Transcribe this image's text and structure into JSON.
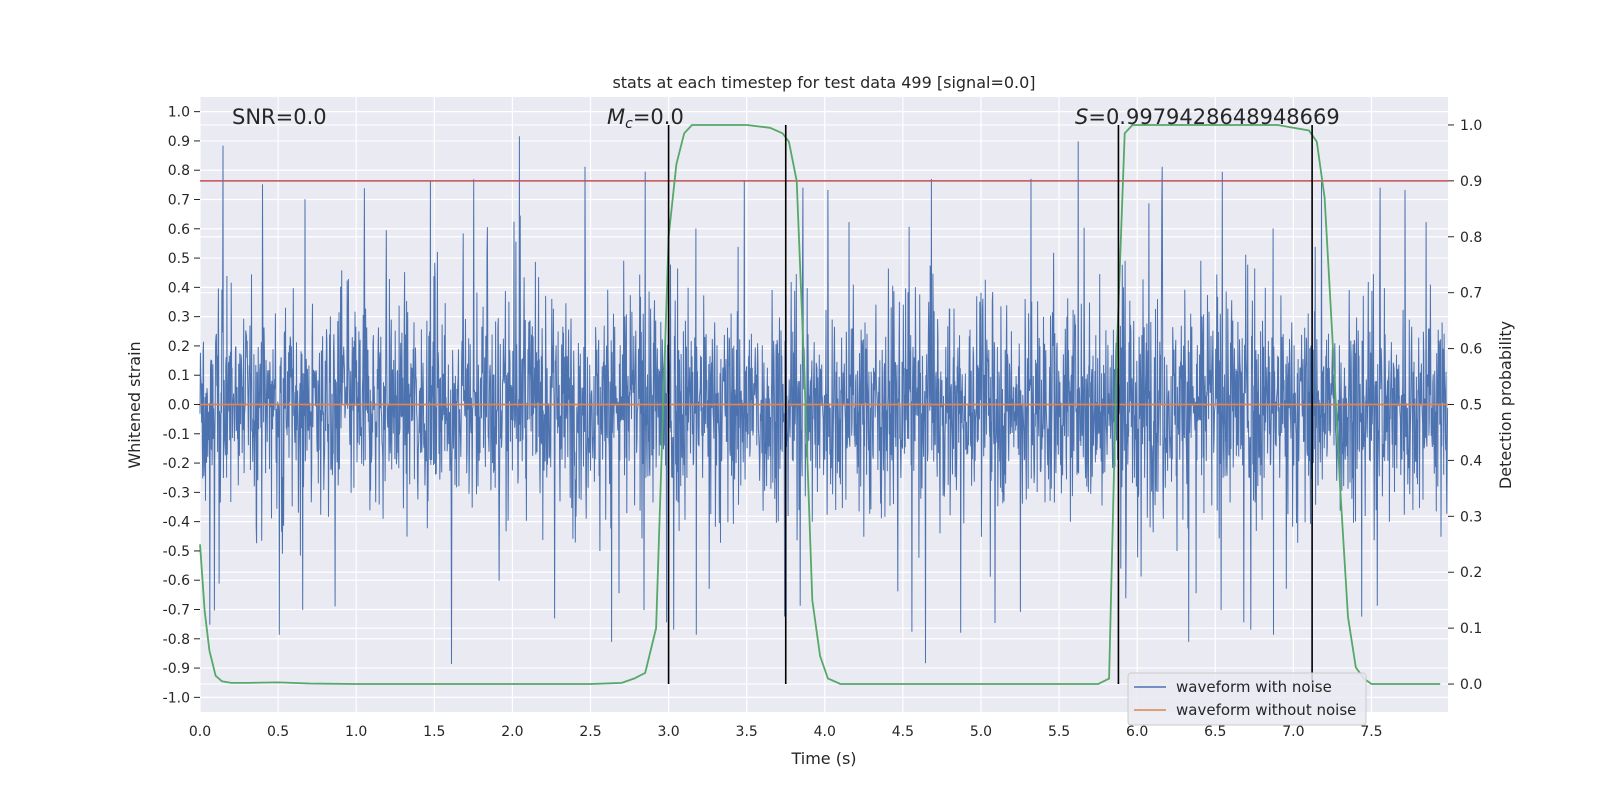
{
  "chart_data": {
    "type": "line",
    "title": "stats at each timestep for test data 499 [signal=0.0]",
    "xlabel": "Time (s)",
    "ylabel": "Whitened strain",
    "y2label": "Detection probability",
    "xlim": [
      0.0,
      7.99
    ],
    "ylim": [
      -1.05,
      1.05
    ],
    "y2lim": [
      -0.05,
      1.05
    ],
    "xticks": [
      "0.0",
      "0.5",
      "1.0",
      "1.5",
      "2.0",
      "2.5",
      "3.0",
      "3.5",
      "4.0",
      "4.5",
      "5.0",
      "5.5",
      "6.0",
      "6.5",
      "7.0",
      "7.5"
    ],
    "yticks": [
      "-1.0",
      "-0.9",
      "-0.8",
      "-0.7",
      "-0.6",
      "-0.5",
      "-0.4",
      "-0.3",
      "-0.2",
      "-0.1",
      "0.0",
      "0.1",
      "0.2",
      "0.3",
      "0.4",
      "0.5",
      "0.6",
      "0.7",
      "0.8",
      "0.9",
      "1.0"
    ],
    "y2ticks": [
      "0.0",
      "0.1",
      "0.2",
      "0.3",
      "0.4",
      "0.5",
      "0.6",
      "0.7",
      "0.8",
      "0.9",
      "1.0"
    ],
    "annotations": {
      "snr": "SNR=0.0",
      "mc_symbol": "M",
      "mc_sub": "c",
      "mc_value": "=0.0",
      "s_symbol": "S",
      "s_value": "=0.9979428648948669"
    },
    "threshold": {
      "value": 0.9,
      "axis": "y2",
      "color": "#c44e52"
    },
    "detection_windows": [
      {
        "start": 3.0,
        "end": 3.75
      },
      {
        "start": 5.88,
        "end": 7.12
      }
    ],
    "series": [
      {
        "name": "waveform with noise",
        "color": "#4c72b0",
        "axis": "y",
        "kind": "noise",
        "seed": 499,
        "dt": 0.0025,
        "t_start": 0.0,
        "t_end": 7.99,
        "core_amplitude": 0.25,
        "peak_max": 1.0,
        "peak_min": -0.92
      },
      {
        "name": "waveform without noise",
        "color": "#dd8452",
        "axis": "y",
        "x": [
          0.0,
          7.99
        ],
        "y": [
          0.0,
          0.0
        ]
      },
      {
        "name": "detection probability",
        "color": "#55a868",
        "axis": "y2",
        "x": [
          0.0,
          0.03,
          0.06,
          0.1,
          0.14,
          0.2,
          0.3,
          0.5,
          0.7,
          1.0,
          1.5,
          2.0,
          2.5,
          2.7,
          2.78,
          2.85,
          2.92,
          3.0,
          3.05,
          3.1,
          3.15,
          3.3,
          3.5,
          3.65,
          3.73,
          3.77,
          3.82,
          3.87,
          3.92,
          3.97,
          4.02,
          4.1,
          4.5,
          5.0,
          5.5,
          5.75,
          5.82,
          5.87,
          5.92,
          5.97,
          6.1,
          6.5,
          6.9,
          7.1,
          7.15,
          7.2,
          7.25,
          7.3,
          7.35,
          7.4,
          7.45,
          7.5,
          7.94
        ],
        "y": [
          0.25,
          0.13,
          0.06,
          0.015,
          0.005,
          0.002,
          0.002,
          0.003,
          0.001,
          0.0,
          0.0,
          0.0,
          0.0,
          0.002,
          0.01,
          0.02,
          0.1,
          0.8,
          0.93,
          0.985,
          1.0,
          1.0,
          1.0,
          0.995,
          0.985,
          0.97,
          0.9,
          0.55,
          0.15,
          0.05,
          0.01,
          0.0,
          0.0,
          0.0,
          0.0,
          0.0,
          0.01,
          0.6,
          0.985,
          1.0,
          1.0,
          1.0,
          1.0,
          0.99,
          0.97,
          0.87,
          0.62,
          0.35,
          0.12,
          0.03,
          0.01,
          0.0,
          0.0
        ]
      }
    ],
    "legend": {
      "placement": "lower-right",
      "entries": [
        "waveform with noise",
        "waveform without noise"
      ]
    }
  }
}
